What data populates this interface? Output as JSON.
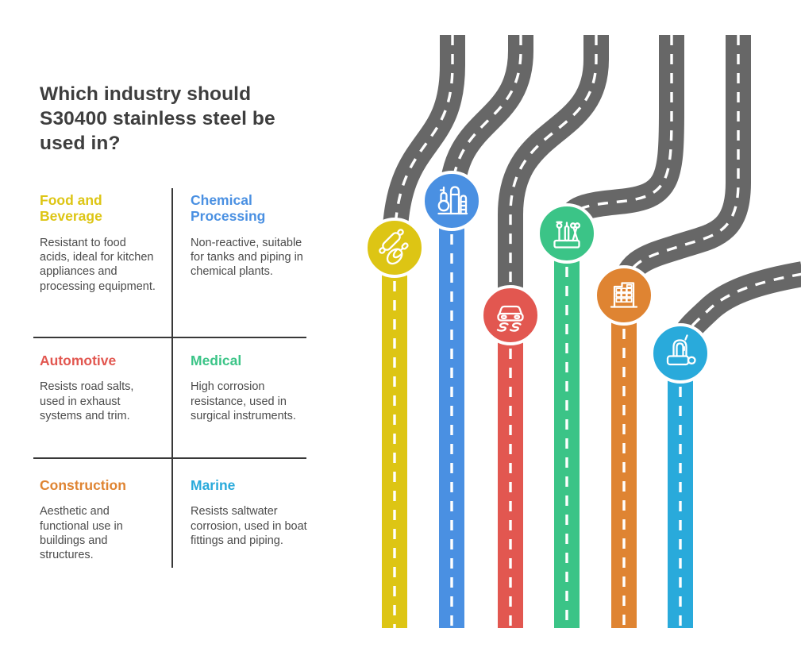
{
  "header": {
    "title": "Which industry should S30400 stainless steel be used in?"
  },
  "industries": [
    {
      "name": "Food and Beverage",
      "description": "Resistant to food acids, ideal for kitchen appliances and processing equipment.",
      "color": "#ddc514",
      "icon": "rolling-pin-whisk-icon"
    },
    {
      "name": "Chemical Processing",
      "description": "Non-reactive, suitable for tanks and piping in chemical plants.",
      "color": "#4a90e2",
      "icon": "chemical-plant-icon"
    },
    {
      "name": "Automotive",
      "description": "Resists road salts, used in exhaust systems and trim.",
      "color": "#e25750",
      "icon": "car-skid-icon"
    },
    {
      "name": "Medical",
      "description": "High corrosion resistance, used in surgical instruments.",
      "color": "#3bc487",
      "icon": "surgical-instruments-icon"
    },
    {
      "name": "Construction",
      "description": "Aesthetic and functional use in buildings and structures.",
      "color": "#df8432",
      "icon": "office-building-icon"
    },
    {
      "name": "Marine",
      "description": "Resists saltwater corrosion, used in boat fittings and piping.",
      "color": "#29aadb",
      "icon": "boat-bollard-icon"
    }
  ],
  "illustration": {
    "road_color": "#676767",
    "lane_marking_color": "#ffffff",
    "circle_ring_color": "#ffffff",
    "text_color": "#3e3e3e",
    "divider_color": "#383838"
  }
}
